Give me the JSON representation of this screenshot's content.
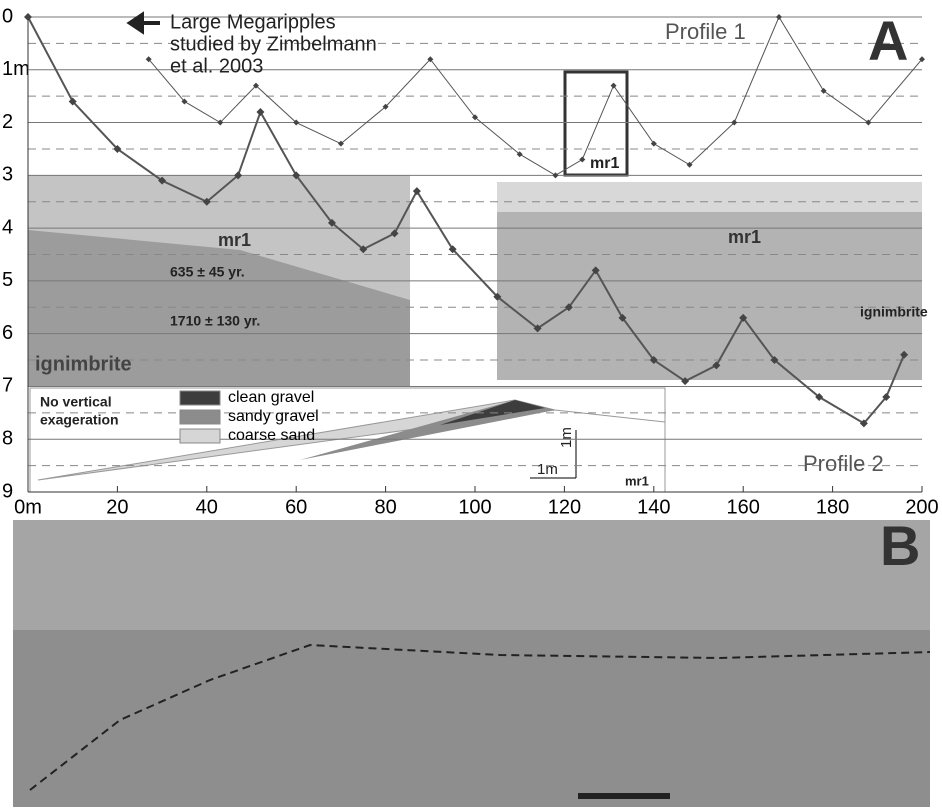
{
  "chart_data": {
    "type": "line",
    "series": [
      {
        "name": "Profile 1",
        "color": "#555555",
        "x": [
          27,
          35,
          43,
          51,
          60,
          70,
          80,
          90,
          100,
          110,
          118,
          124,
          131,
          140,
          148,
          158,
          168,
          178,
          188,
          200
        ],
        "values": [
          0.8,
          1.6,
          2.0,
          1.3,
          2.0,
          2.4,
          1.7,
          0.8,
          1.9,
          2.6,
          3.0,
          2.7,
          1.3,
          2.4,
          2.8,
          2.0,
          0.0,
          1.4,
          2.0,
          0.8
        ]
      },
      {
        "name": "Profile 2",
        "color": "#555555",
        "x": [
          0,
          10,
          20,
          30,
          40,
          47,
          52,
          60,
          68,
          75,
          82,
          87,
          95,
          105,
          114,
          121,
          127,
          133,
          140,
          147,
          154,
          160,
          167,
          177,
          187,
          192,
          196
        ],
        "values": [
          0.0,
          1.6,
          2.5,
          3.1,
          3.5,
          3.0,
          1.8,
          3.0,
          3.9,
          4.4,
          4.1,
          3.3,
          4.4,
          5.3,
          5.9,
          5.5,
          4.8,
          5.7,
          6.5,
          6.9,
          6.6,
          5.7,
          6.5,
          7.2,
          7.7,
          7.2,
          6.4
        ]
      }
    ],
    "xlim": [
      0,
      200
    ],
    "ylim": [
      0,
      9
    ],
    "xticks": [
      {
        "value": 0,
        "label": "0m"
      },
      20,
      40,
      60,
      80,
      100,
      120,
      140,
      160,
      180,
      200
    ],
    "yticks": [
      0,
      {
        "value": 1,
        "label": "1m"
      },
      2,
      3,
      4,
      5,
      6,
      7,
      8,
      9
    ],
    "minor_yticks": [
      0.5,
      1.5,
      2.5,
      3.5,
      4.5,
      5.5,
      6.5,
      7.5,
      8.5
    ],
    "grid": true,
    "annotations": [
      "Large Megaripples",
      "studied by Zimbelmann",
      "et al. 2003",
      "Profile 1",
      "Profile 2",
      "A",
      "B",
      "mr1",
      "635 ± 45  yr.",
      "1710 ± 130 yr.",
      "ignimbrite",
      "mr1",
      "ignimbrite",
      "mr1",
      "No vertical",
      "exageration",
      "1m",
      "1m",
      "mr1"
    ],
    "legend": [
      {
        "name": "clean gravel",
        "color": "#3d3d3d"
      },
      {
        "name": "sandy gravel",
        "color": "#8c8c8c"
      },
      {
        "name": "coarse sand",
        "color": "#d6d6d6"
      }
    ]
  }
}
